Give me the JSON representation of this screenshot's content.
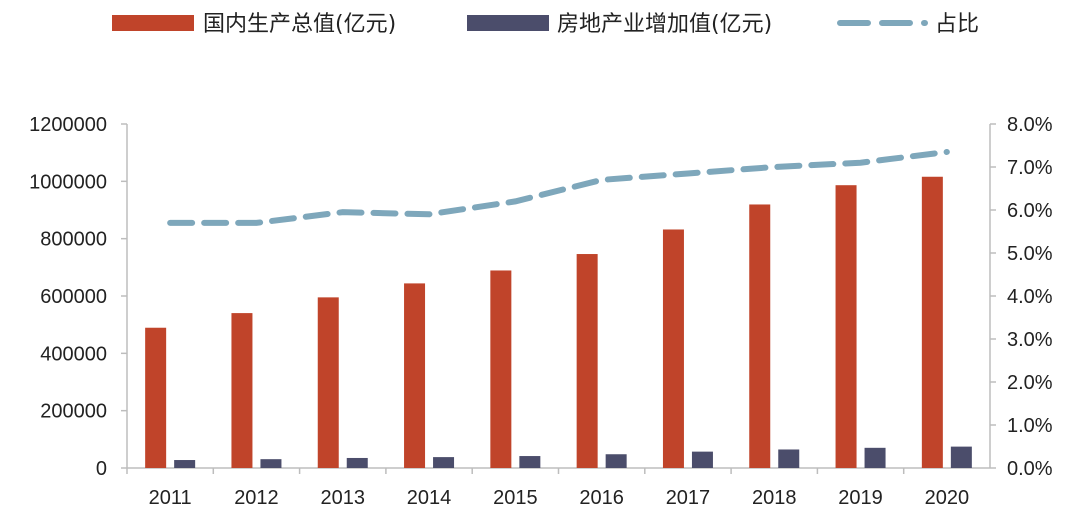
{
  "chart_data": {
    "type": "bar+line",
    "categories": [
      "2011",
      "2012",
      "2013",
      "2014",
      "2015",
      "2016",
      "2017",
      "2018",
      "2019",
      "2020"
    ],
    "series": [
      {
        "name": "国内生产总值(亿元)",
        "type": "bar",
        "axis": "left",
        "color": "#c0442a",
        "values": [
          489300,
          540367,
          595244,
          643974,
          689052,
          746395,
          832036,
          919281,
          986515,
          1015986
        ]
      },
      {
        "name": "房地产业增加值(亿元)",
        "type": "bar",
        "axis": "left",
        "color": "#4b4d6b",
        "values": [
          27800,
          30800,
          35000,
          38000,
          41700,
          48000,
          57100,
          64600,
          70400,
          74600
        ]
      },
      {
        "name": "占比",
        "type": "line",
        "axis": "right",
        "color": "#7ea7bb",
        "style": "dashed",
        "values": [
          5.7,
          5.7,
          5.95,
          5.9,
          6.2,
          6.7,
          6.85,
          7.0,
          7.1,
          7.35
        ]
      }
    ],
    "left_axis": {
      "min": 0,
      "max": 1200000,
      "ticks": [
        "0",
        "200000",
        "400000",
        "600000",
        "800000",
        "1000000",
        "1200000"
      ]
    },
    "right_axis": {
      "min": 0,
      "max": 8,
      "ticks": [
        "0.0%",
        "1.0%",
        "2.0%",
        "3.0%",
        "4.0%",
        "5.0%",
        "6.0%",
        "7.0%",
        "8.0%"
      ]
    },
    "legend_position": "top",
    "grid": false
  }
}
